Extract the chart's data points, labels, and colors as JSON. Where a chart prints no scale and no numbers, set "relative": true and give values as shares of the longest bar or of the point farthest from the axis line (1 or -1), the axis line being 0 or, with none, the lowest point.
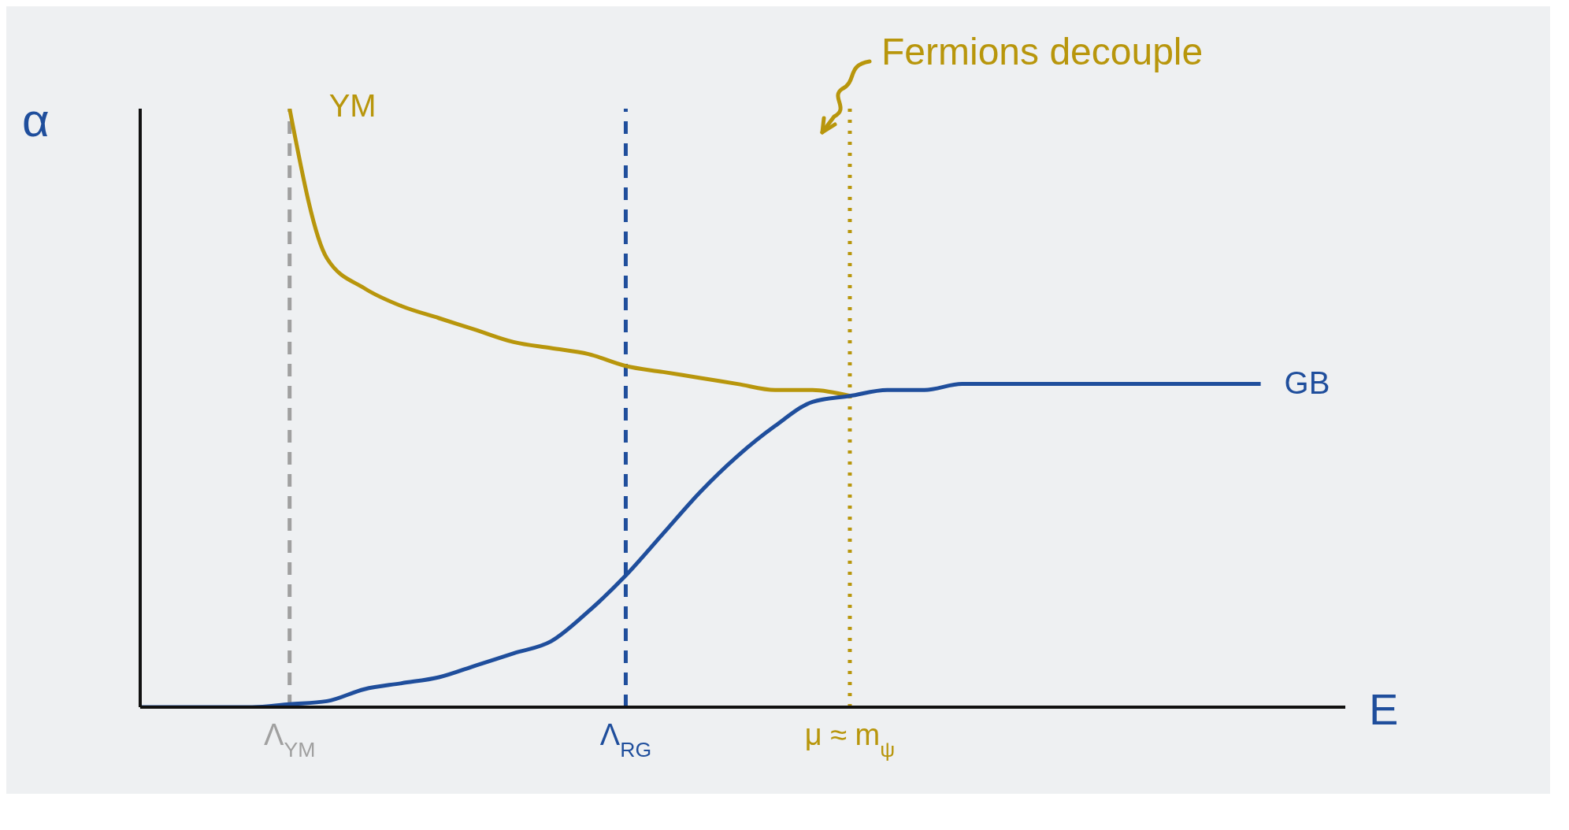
{
  "chart_data": {
    "type": "line",
    "relative": true,
    "xlabel": "E",
    "ylabel": "α",
    "categories": [
      null,
      null,
      null,
      null,
      "Λ$_{YM}$",
      null,
      null,
      null,
      null,
      null,
      null,
      null,
      null,
      "Λ$_{RG}$",
      null,
      null,
      null,
      null,
      null,
      "μ ≈ m$_{ψ}$",
      null,
      null,
      null,
      null,
      null,
      null,
      null,
      null,
      null,
      null,
      null,
      null
    ],
    "series": [
      {
        "name": "YM",
        "color": "#b8960c",
        "values": [
          null,
          null,
          null,
          null,
          1.0,
          0.75,
          0.7,
          0.67,
          0.65,
          0.63,
          0.61,
          0.6,
          0.59,
          0.57,
          0.56,
          0.55,
          0.54,
          0.53,
          0.53,
          0.52,
          null,
          null,
          null,
          null,
          null,
          null,
          null,
          null,
          null,
          null,
          null,
          null
        ]
      },
      {
        "name": "GB",
        "color": "#1f4e9c",
        "values": [
          0,
          0,
          0,
          0,
          0.005,
          0.01,
          0.03,
          0.04,
          0.05,
          0.07,
          0.09,
          0.11,
          0.16,
          0.22,
          0.29,
          0.36,
          0.42,
          0.47,
          0.51,
          0.52,
          0.53,
          0.53,
          0.54,
          0.54,
          0.54,
          0.54,
          0.54,
          0.54,
          0.54,
          0.54,
          0.54,
          null
        ]
      }
    ],
    "ref_lines": [
      {
        "axis": "x",
        "value": "Λ$_{YM}$",
        "color": "#a0a0a0",
        "line_style": "dashed"
      },
      {
        "axis": "x",
        "value": "Λ$_{RG}$",
        "color": "#1f4e9c",
        "line_style": "dashed"
      },
      {
        "axis": "x",
        "value": "μ ≈ m$_{ψ}$",
        "color": "#b8960c",
        "line_style": "dotted"
      }
    ],
    "annotations": [
      "Fermions decouple"
    ],
    "grid": false,
    "legend": false,
    "marker": "none",
    "line_style": "solid"
  }
}
